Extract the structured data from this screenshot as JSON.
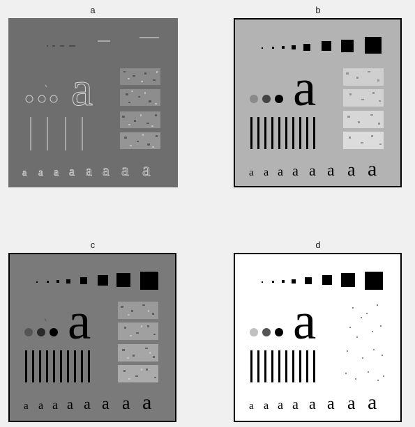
{
  "figure": {
    "panels": [
      {
        "id": "a",
        "title": "a",
        "description": "high-pass filtered test pattern"
      },
      {
        "id": "b",
        "title": "b",
        "description": "test pattern on light gray"
      },
      {
        "id": "c",
        "title": "c",
        "description": "test pattern on mid gray"
      },
      {
        "id": "d",
        "title": "d",
        "description": "test pattern on white"
      }
    ]
  },
  "glyph": "a"
}
